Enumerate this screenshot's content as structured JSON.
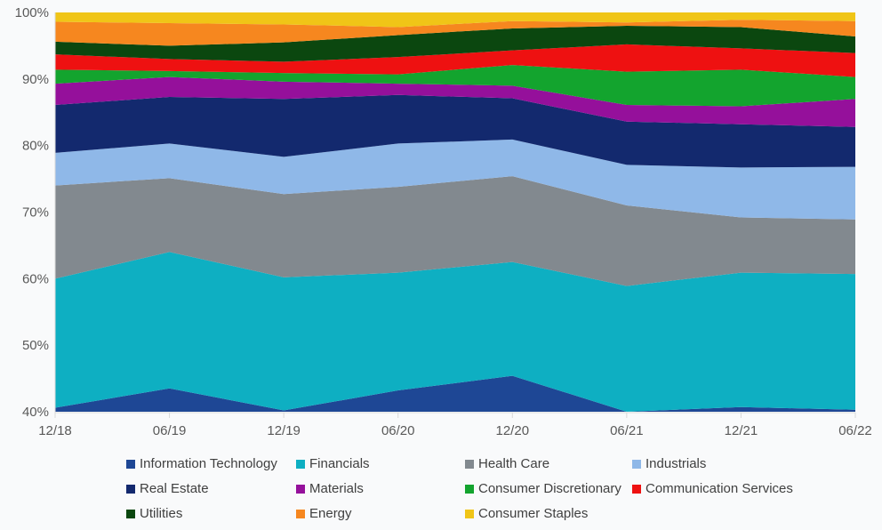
{
  "chart_data": {
    "type": "area",
    "variant": "stacked-100-percent",
    "title": "",
    "x_labels": [
      "12/18",
      "06/19",
      "12/19",
      "06/20",
      "12/20",
      "06/21",
      "12/21",
      "06/22"
    ],
    "y_ticks": [
      "40%",
      "50%",
      "60%",
      "70%",
      "80%",
      "90%",
      "100%"
    ],
    "y_min": 40,
    "y_max": 100,
    "y_tick_step": 10,
    "grid": false,
    "legend_position": "bottom",
    "axis_color": "#D9D9D9",
    "axis_text_color": "#595959",
    "legend_text_color": "#404040",
    "series": [
      {
        "name": "Information Technology",
        "color": "#1E4795",
        "values": [
          40.6,
          43.5,
          40.2,
          43.2,
          45.4,
          40.0,
          40.7,
          40.3
        ],
        "cumulative_top": [
          40.6,
          43.5,
          40.2,
          43.2,
          45.4,
          40.0,
          40.7,
          40.3
        ]
      },
      {
        "name": "Financials",
        "color": "#0EAFC2",
        "values": [
          19.4,
          20.5,
          20.0,
          17.7,
          17.1,
          18.9,
          20.2,
          20.4
        ],
        "cumulative_top": [
          60.0,
          64.0,
          60.2,
          60.9,
          62.5,
          58.9,
          60.9,
          60.7
        ]
      },
      {
        "name": "Health Care",
        "color": "#82898F",
        "values": [
          14.0,
          11.1,
          12.5,
          12.9,
          12.9,
          12.1,
          8.3,
          8.2
        ],
        "cumulative_top": [
          74.0,
          75.1,
          72.7,
          73.8,
          75.4,
          71.0,
          69.2,
          68.9
        ]
      },
      {
        "name": "Industrials",
        "color": "#8FB8E8",
        "values": [
          4.9,
          5.2,
          5.6,
          6.5,
          5.5,
          6.1,
          7.5,
          7.9
        ],
        "cumulative_top": [
          78.9,
          80.3,
          78.3,
          80.3,
          80.9,
          77.1,
          76.7,
          76.8
        ]
      },
      {
        "name": "Real Estate",
        "color": "#13296E",
        "values": [
          7.2,
          7.0,
          8.7,
          7.3,
          6.2,
          6.5,
          6.5,
          6.0
        ],
        "cumulative_top": [
          86.1,
          87.3,
          87.0,
          87.6,
          87.1,
          83.6,
          83.2,
          82.8
        ]
      },
      {
        "name": "Materials",
        "color": "#95109B",
        "values": [
          3.2,
          3.0,
          2.6,
          1.7,
          1.9,
          2.5,
          2.7,
          4.2
        ],
        "cumulative_top": [
          89.3,
          90.3,
          89.6,
          89.3,
          89.0,
          86.1,
          85.9,
          87.0
        ]
      },
      {
        "name": "Consumer Discretionary",
        "color": "#13A42E",
        "values": [
          2.1,
          0.9,
          1.3,
          1.4,
          3.1,
          5.0,
          5.5,
          3.3
        ],
        "cumulative_top": [
          91.4,
          91.2,
          90.9,
          90.7,
          92.1,
          91.1,
          91.4,
          90.3
        ]
      },
      {
        "name": "Communication Services",
        "color": "#EE1111",
        "values": [
          2.3,
          1.8,
          1.7,
          2.6,
          2.2,
          4.1,
          3.2,
          3.6
        ],
        "cumulative_top": [
          93.7,
          93.0,
          92.6,
          93.3,
          94.3,
          95.2,
          94.6,
          93.9
        ]
      },
      {
        "name": "Utilities",
        "color": "#0B470F",
        "values": [
          1.9,
          2.0,
          2.9,
          3.3,
          3.3,
          2.8,
          3.2,
          2.5
        ],
        "cumulative_top": [
          95.6,
          95.0,
          95.5,
          96.6,
          97.6,
          98.0,
          97.8,
          96.4
        ]
      },
      {
        "name": "Energy",
        "color": "#F6871F",
        "values": [
          3.0,
          3.4,
          2.7,
          1.2,
          1.1,
          0.5,
          1.1,
          2.3
        ],
        "cumulative_top": [
          98.6,
          98.4,
          98.2,
          97.8,
          98.7,
          98.5,
          98.9,
          98.7
        ]
      },
      {
        "name": "Consumer Staples",
        "color": "#F0C517",
        "values": [
          1.4,
          1.6,
          1.8,
          2.2,
          1.3,
          1.5,
          1.1,
          1.3
        ],
        "cumulative_top": [
          100,
          100,
          100,
          100,
          100,
          100,
          100,
          100
        ]
      }
    ]
  }
}
